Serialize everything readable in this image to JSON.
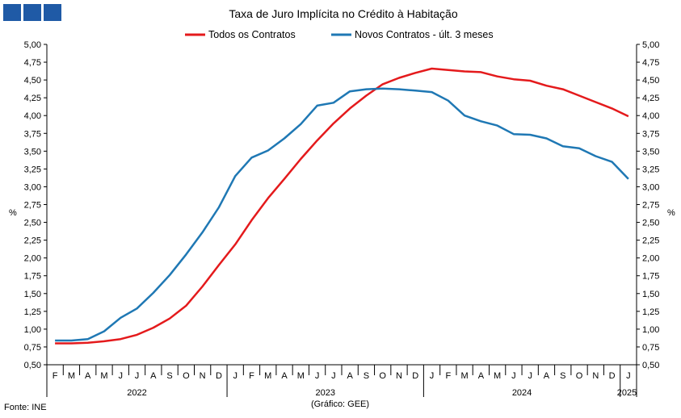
{
  "logo": {
    "name": "ine-logo-squares"
  },
  "chart_data": {
    "type": "line",
    "title": "Taxa de Juro Implícita  no Crédito à Habitação",
    "ylabel": "%",
    "ylim": [
      0.5,
      5.0
    ],
    "yticks": [
      "0,50",
      "0,75",
      "1,00",
      "1,25",
      "1,50",
      "1,75",
      "2,00",
      "2,25",
      "2,50",
      "2,75",
      "3,00",
      "3,25",
      "3,50",
      "3,75",
      "4,00",
      "4,25",
      "4,50",
      "4,75",
      "5,00"
    ],
    "x": [
      "F",
      "M",
      "A",
      "M",
      "J",
      "J",
      "A",
      "S",
      "O",
      "N",
      "D",
      "J",
      "F",
      "M",
      "A",
      "M",
      "J",
      "J",
      "A",
      "S",
      "O",
      "N",
      "D",
      "J",
      "F",
      "M",
      "A",
      "M",
      "J",
      "J",
      "A",
      "S",
      "O",
      "N",
      "D",
      "J"
    ],
    "years": [
      {
        "label": "2022",
        "start": 0,
        "end": 11
      },
      {
        "label": "2023",
        "start": 11,
        "end": 23
      },
      {
        "label": "2024",
        "start": 23,
        "end": 35
      },
      {
        "label": "2025",
        "start": 35,
        "end": 36
      }
    ],
    "grid": false,
    "legend_position": "top",
    "series": [
      {
        "name": "Todos os Contratos",
        "color": "#e41a1c",
        "values": [
          0.8,
          0.8,
          0.81,
          0.83,
          0.86,
          0.92,
          1.02,
          1.15,
          1.33,
          1.6,
          1.9,
          2.19,
          2.53,
          2.84,
          3.11,
          3.39,
          3.65,
          3.89,
          4.1,
          4.28,
          4.44,
          4.53,
          4.6,
          4.66,
          4.64,
          4.62,
          4.61,
          4.55,
          4.51,
          4.49,
          4.42,
          4.37,
          4.28,
          4.19,
          4.1,
          3.99
        ]
      },
      {
        "name": "Novos Contratos - últ. 3 meses",
        "color": "#1f78b4",
        "values": [
          0.84,
          0.84,
          0.86,
          0.97,
          1.16,
          1.29,
          1.51,
          1.76,
          2.05,
          2.36,
          2.71,
          3.15,
          3.41,
          3.51,
          3.68,
          3.88,
          4.14,
          4.18,
          4.34,
          4.37,
          4.38,
          4.37,
          4.35,
          4.33,
          4.21,
          4.0,
          3.92,
          3.86,
          3.74,
          3.73,
          3.68,
          3.57,
          3.54,
          3.43,
          3.35,
          3.11
        ]
      }
    ]
  },
  "footer": {
    "source": "Fonte: INE",
    "credit": "(Gráfico: GEE)"
  }
}
